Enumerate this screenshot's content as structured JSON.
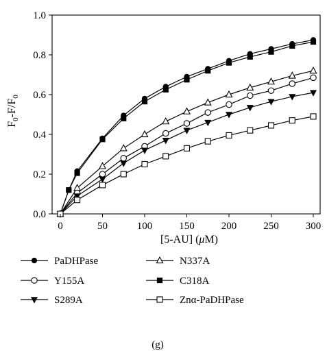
{
  "chart_data": {
    "type": "line",
    "xlabel": {
      "main": "[5-AU] (",
      "italic": "μ",
      "unit": "M)"
    },
    "ylabel": {
      "prefix": "F",
      "sub1": "0",
      "middle": "-F/F",
      "sub2": "0"
    },
    "xlim": [
      0,
      300
    ],
    "ylim": [
      0,
      1.0
    ],
    "x_ticks": [
      "0",
      "50",
      "100",
      "150",
      "200",
      "250",
      "300"
    ],
    "y_ticks": [
      "0.0",
      "0.2",
      "0.4",
      "0.6",
      "0.8",
      "1.0"
    ],
    "x": [
      0,
      10,
      20,
      50,
      75,
      100,
      125,
      150,
      175,
      200,
      225,
      250,
      275,
      300
    ],
    "grid": false,
    "legend_placement": "bottom",
    "panel_label": "(g)",
    "series": [
      {
        "name": "PaDHPase",
        "marker": "filled-circle",
        "values": [
          0,
          0.12,
          0.215,
          0.38,
          0.495,
          0.58,
          0.64,
          0.69,
          0.73,
          0.77,
          0.805,
          0.83,
          0.855,
          0.875
        ]
      },
      {
        "name": "N337A",
        "marker": "open-triangle",
        "values": [
          0,
          null,
          0.13,
          0.24,
          0.33,
          0.4,
          0.465,
          0.515,
          0.56,
          0.6,
          0.635,
          0.665,
          0.695,
          0.72
        ]
      },
      {
        "name": "Y155A",
        "marker": "open-circle",
        "values": [
          0,
          null,
          0.105,
          0.2,
          0.28,
          0.34,
          0.405,
          0.455,
          0.51,
          0.55,
          0.595,
          0.62,
          0.655,
          0.685
        ]
      },
      {
        "name": "C318A",
        "marker": "filled-square",
        "values": [
          0,
          0.12,
          0.205,
          0.375,
          0.48,
          0.565,
          0.625,
          0.675,
          0.72,
          0.76,
          0.79,
          0.815,
          0.845,
          0.865
        ]
      },
      {
        "name": "S289A",
        "marker": "filled-triangle-down",
        "values": [
          0,
          null,
          0.09,
          0.175,
          0.255,
          0.32,
          0.37,
          0.42,
          0.46,
          0.5,
          0.535,
          0.565,
          0.59,
          0.61
        ]
      },
      {
        "name": "Znα-PaDHPase",
        "marker": "open-square",
        "values": [
          0,
          null,
          0.07,
          0.145,
          0.2,
          0.25,
          0.29,
          0.33,
          0.365,
          0.395,
          0.42,
          0.445,
          0.47,
          0.49
        ]
      }
    ]
  }
}
